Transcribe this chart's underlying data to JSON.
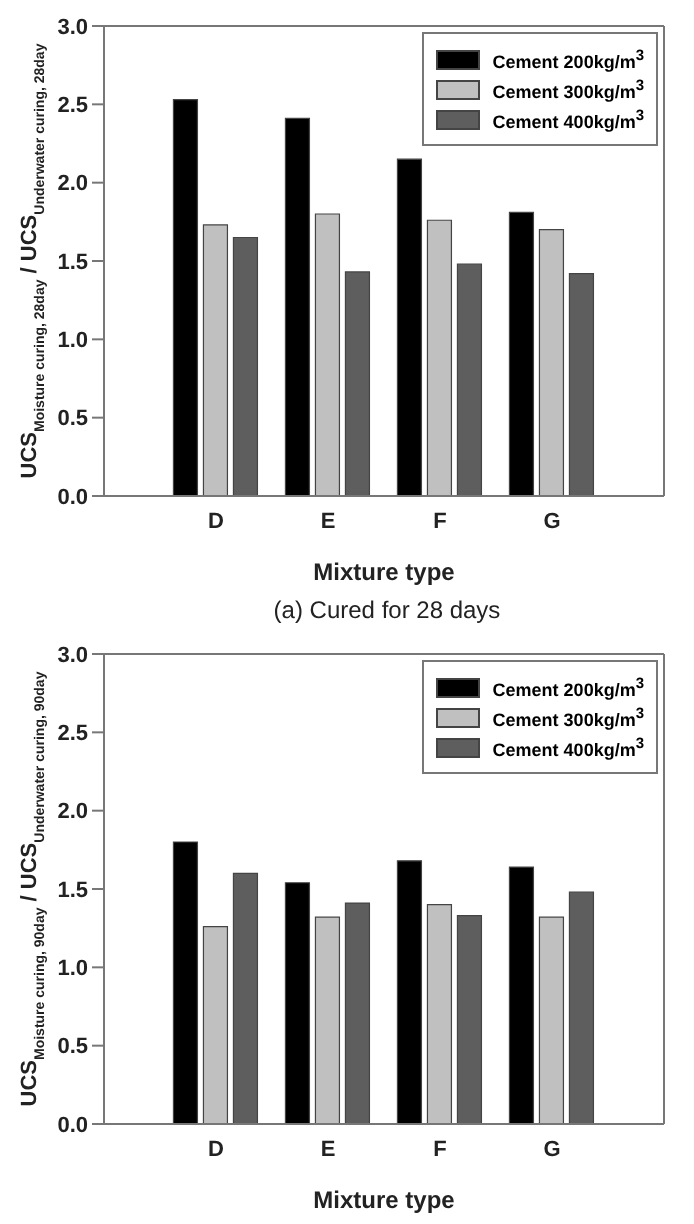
{
  "chart_data": [
    {
      "type": "bar",
      "categories": [
        "D",
        "E",
        "F",
        "G"
      ],
      "xlabel": "Mixture type",
      "ylabel": "UCS$_{Moisture curing, 28day}$ / UCS$_{Underwater curing, 28day}$",
      "ylim": [
        0,
        3
      ],
      "yticks": [
        {
          "value": 0,
          "label": "0.0"
        },
        {
          "value": 0.5,
          "label": "0.5"
        },
        {
          "value": 1,
          "label": "1.0"
        },
        {
          "value": 1.5,
          "label": "1.5"
        },
        {
          "value": 2,
          "label": "2.0"
        },
        {
          "value": 2.5,
          "label": "2.5"
        },
        {
          "value": 3,
          "label": "3.0"
        }
      ],
      "legend": "top right",
      "annotations": [
        "(a) Cured for 28 days"
      ],
      "series": [
        {
          "name": "Cement 200kg/m$^{3}$",
          "color": "#000000",
          "values": [
            2.53,
            2.41,
            2.15,
            1.81
          ]
        },
        {
          "name": "Cement 300kg/m$^{3}$",
          "color": "#c0c0c0",
          "values": [
            1.73,
            1.8,
            1.76,
            1.7
          ]
        },
        {
          "name": "Cement 400kg/m$^{3}$",
          "color": "#5e5e5e",
          "values": [
            1.65,
            1.43,
            1.48,
            1.42
          ]
        }
      ]
    },
    {
      "type": "bar",
      "categories": [
        "D",
        "E",
        "F",
        "G"
      ],
      "xlabel": "Mixture type",
      "ylabel": "UCS$_{Moisture curing, 90day}$ / UCS$_{Underwater curing, 90day}$",
      "ylim": [
        0,
        3
      ],
      "yticks": [
        {
          "value": 0,
          "label": "0.0"
        },
        {
          "value": 0.5,
          "label": "0.5"
        },
        {
          "value": 1,
          "label": "1.0"
        },
        {
          "value": 1.5,
          "label": "1.5"
        },
        {
          "value": 2,
          "label": "2.0"
        },
        {
          "value": 2.5,
          "label": "2.5"
        },
        {
          "value": 3,
          "label": "3.0"
        }
      ],
      "legend": "top right",
      "series": [
        {
          "name": "Cement 200kg/m$^{3}$",
          "color": "#000000",
          "values": [
            1.8,
            1.54,
            1.68,
            1.64
          ]
        },
        {
          "name": "Cement 300kg/m$^{3}$",
          "color": "#c0c0c0",
          "values": [
            1.26,
            1.32,
            1.4,
            1.32
          ]
        },
        {
          "name": "Cement 400kg/m$^{3}$",
          "color": "#5e5e5e",
          "values": [
            1.6,
            1.41,
            1.33,
            1.48
          ]
        }
      ]
    }
  ]
}
